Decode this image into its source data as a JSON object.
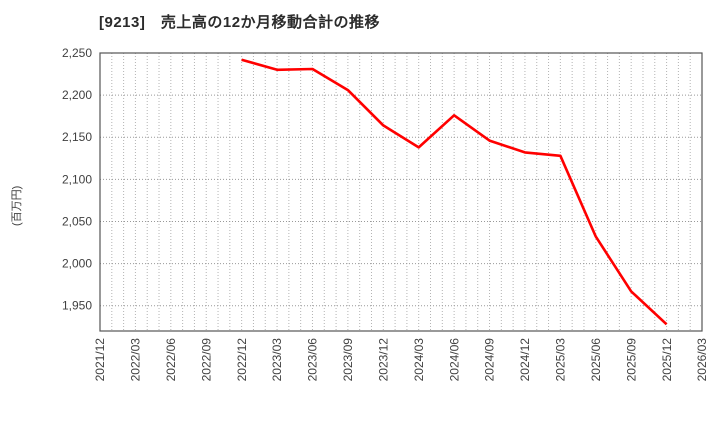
{
  "title": "[9213]　売上高の12か月移動合計の推移",
  "chart_data": {
    "type": "line",
    "title": "[9213]　売上高の12か月移動合計の推移",
    "xlabel": "",
    "ylabel": "(百万円)",
    "x_ticks": [
      "2021/12",
      "2022/03",
      "2022/06",
      "2022/09",
      "2022/12",
      "2023/03",
      "2023/06",
      "2023/09",
      "2023/12",
      "2024/03",
      "2024/06",
      "2024/09",
      "2024/12",
      "2025/03",
      "2025/06",
      "2025/09",
      "2025/12",
      "2026/03"
    ],
    "yticks": [
      1950,
      2000,
      2050,
      2100,
      2150,
      2200,
      2250
    ],
    "ylim": [
      1920,
      2250
    ],
    "grid": "dotted",
    "minor_x_gridlines_per_tick": 3,
    "legend": "none",
    "series": [
      {
        "color": "#ff0000",
        "x": [
          "2022/12",
          "2023/03",
          "2023/06",
          "2023/09",
          "2023/12",
          "2024/03",
          "2024/06",
          "2024/09",
          "2024/12",
          "2025/03",
          "2025/06",
          "2025/09",
          "2025/12"
        ],
        "values": [
          2242,
          2230,
          2231,
          2206,
          2164,
          2138,
          2176,
          2146,
          2132,
          2128,
          2032,
          1967,
          1928
        ]
      }
    ]
  },
  "colors": {
    "line": "#ff0000",
    "plot_border": "#555555",
    "h_gridline": "#999999",
    "v_gridline": "#b3b3b3",
    "tick_label": "#404040",
    "title": "#2b2b2b",
    "background": "#ffffff"
  }
}
